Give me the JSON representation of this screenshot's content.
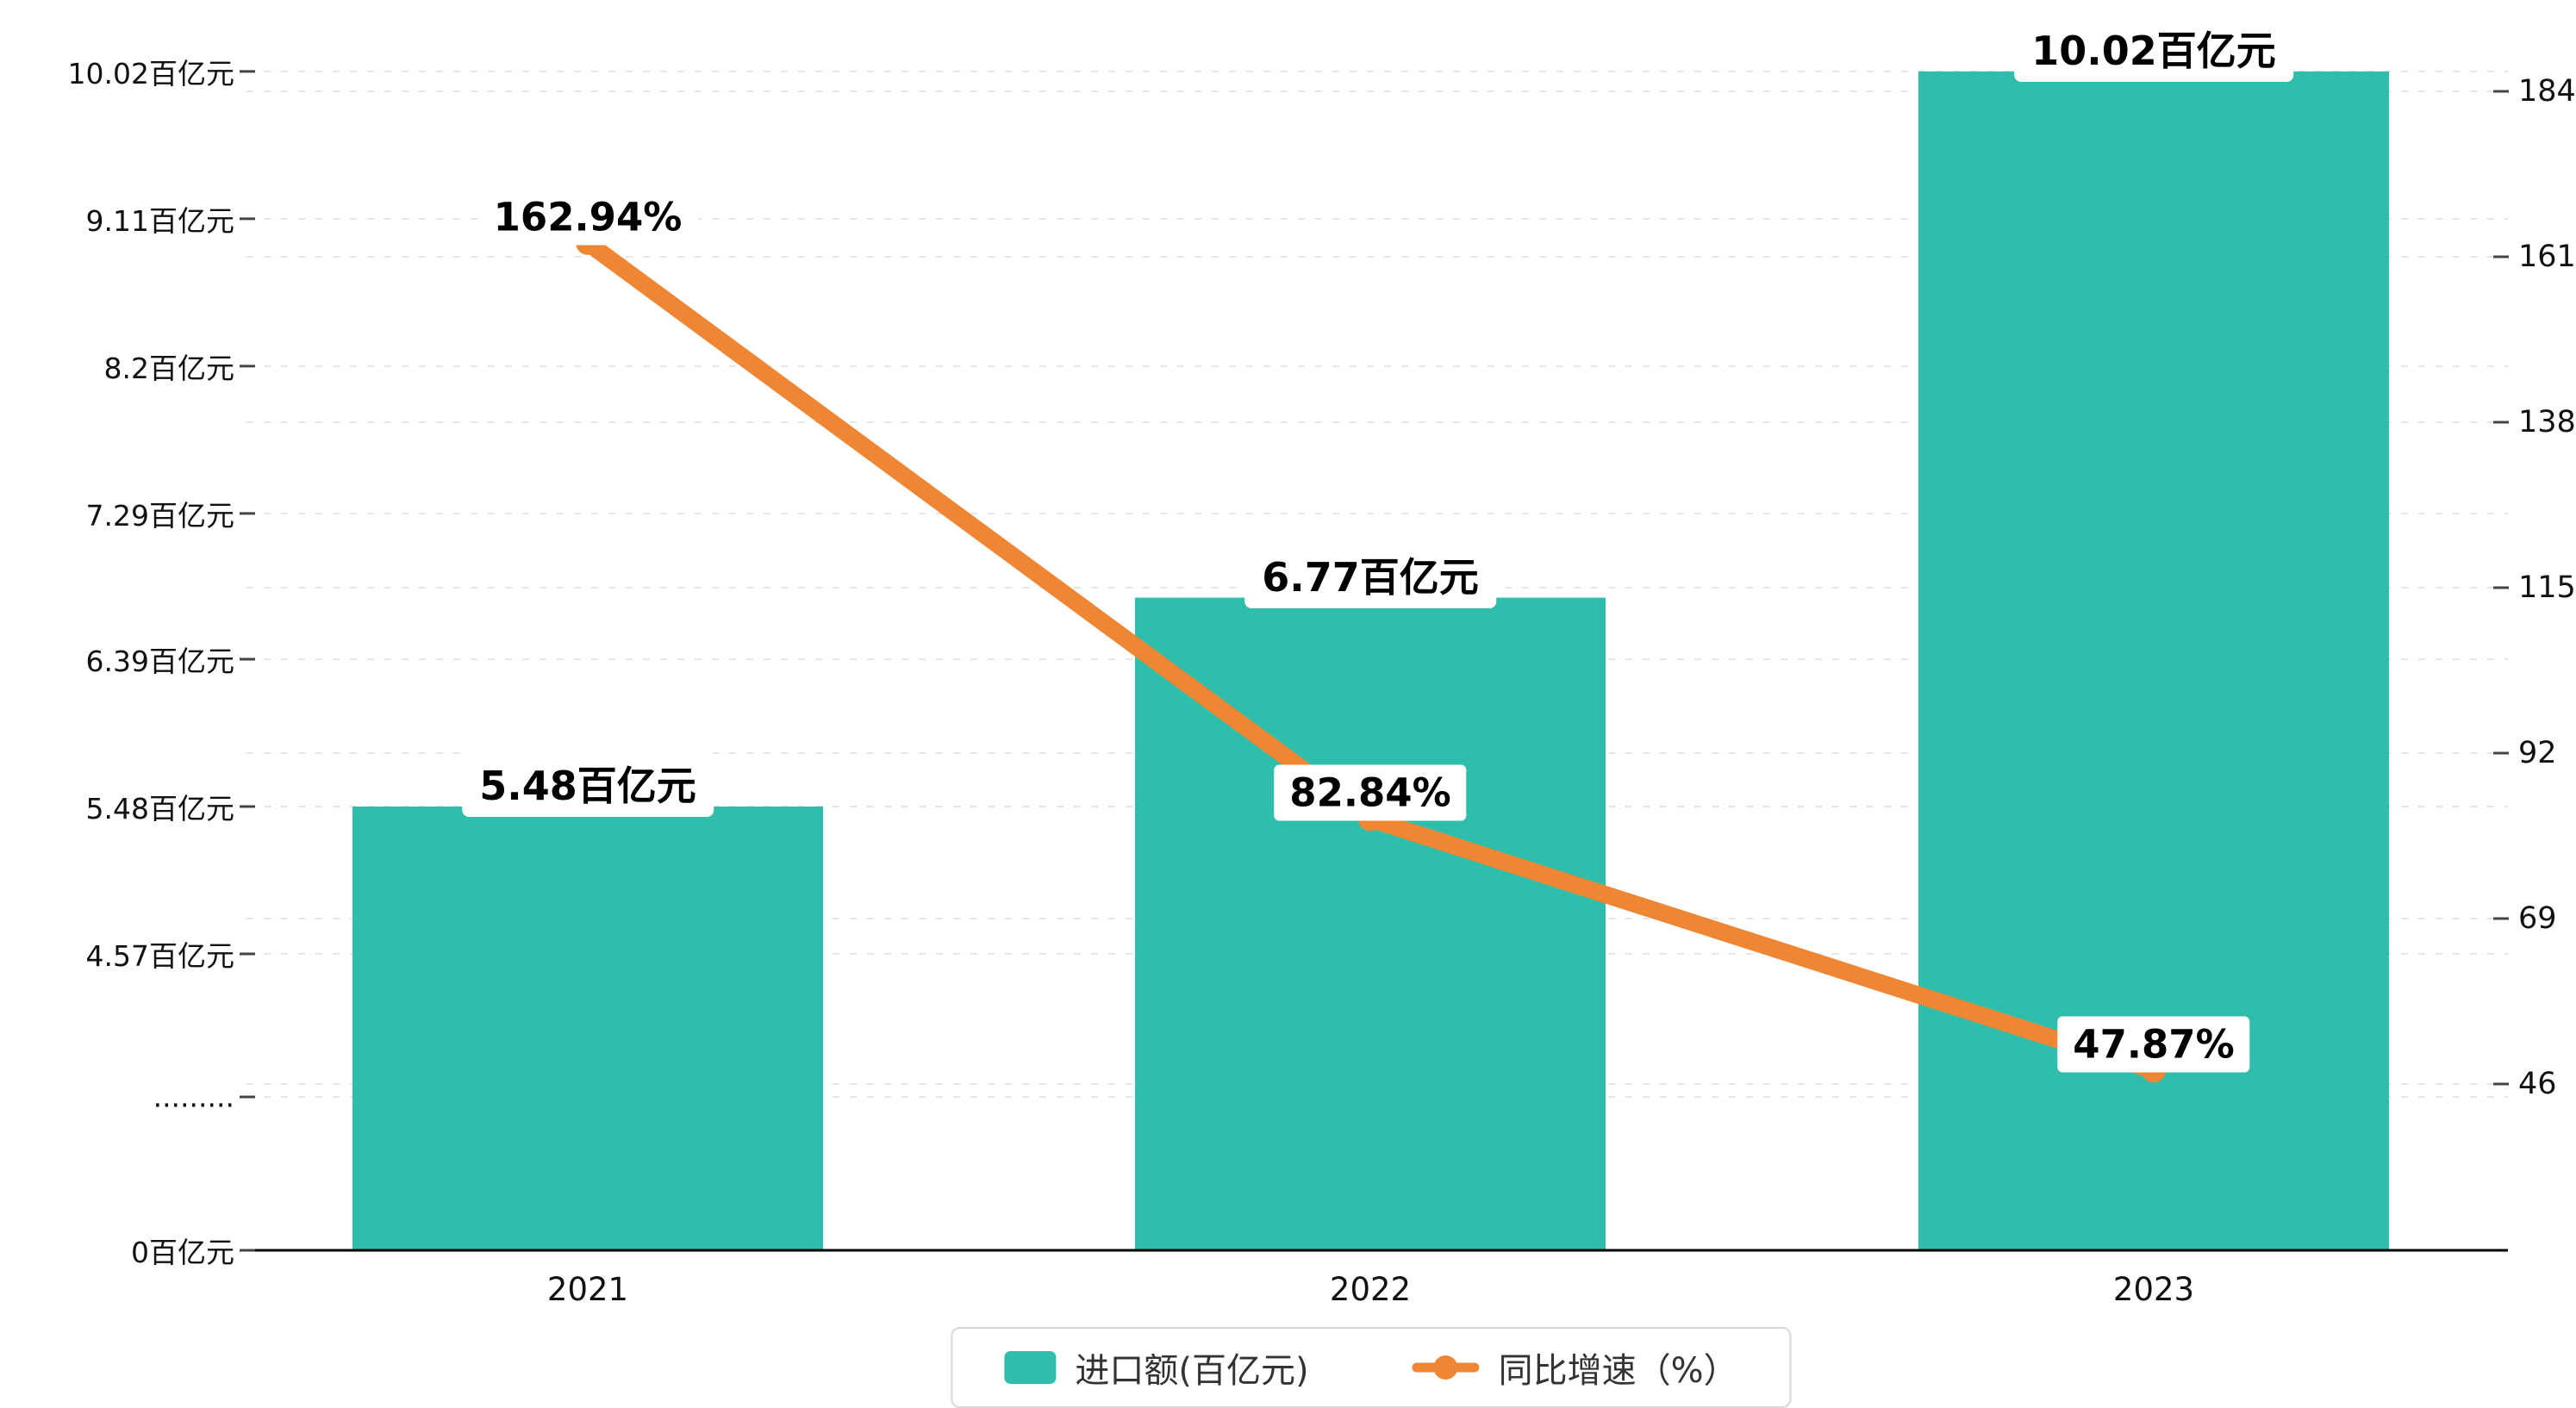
{
  "chart_data": {
    "type": "bar",
    "categories": [
      "2021",
      "2022",
      "2023"
    ],
    "series": [
      {
        "name": "进口额(百亿元)",
        "type": "bar",
        "values": [
          5.48,
          6.77,
          10.02
        ],
        "data_labels": [
          "5.48百亿元",
          "6.77百亿元",
          "10.02百亿元"
        ],
        "color": "#2FBEAC"
      },
      {
        "name": "同比增速（%）",
        "type": "line",
        "values": [
          162.94,
          82.84,
          47.87
        ],
        "data_labels": [
          "162.94%",
          "82.84%",
          "47.87%"
        ],
        "color": "#EE8634"
      }
    ],
    "left_axis": {
      "tick_values": [
        10.02,
        9.11,
        8.2,
        7.29,
        6.39,
        5.48,
        4.57
      ],
      "tick_labels": [
        "10.02百亿元",
        "9.11百亿元",
        "8.2百亿元",
        "7.29百亿元",
        "6.39百亿元",
        "5.48百亿元",
        "4.57百亿元"
      ],
      "break_label": ".........",
      "zero_label": "0百亿元",
      "axis_break": true
    },
    "right_axis": {
      "tick_values": [
        184,
        161,
        138,
        115,
        92,
        69,
        46
      ],
      "tick_labels": [
        "184",
        "161",
        "138",
        "115",
        "92",
        "69",
        "46"
      ]
    },
    "legend": {
      "items": [
        "进口额(百亿元)",
        "同比增速（%）"
      ],
      "position": "bottom"
    },
    "grid": true,
    "background": "#ffffff",
    "colors": {
      "bar": "#2FBEAC",
      "line": "#EE8634",
      "gridline": "#e6e6e6",
      "axis": "#000000"
    }
  }
}
